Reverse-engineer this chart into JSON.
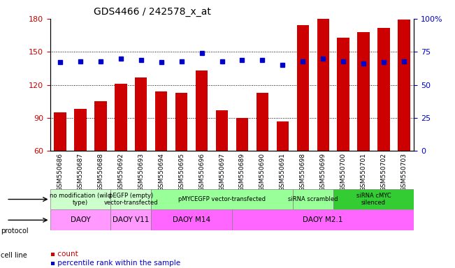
{
  "title": "GDS4466 / 242578_x_at",
  "samples": [
    "GSM550686",
    "GSM550687",
    "GSM550688",
    "GSM550692",
    "GSM550693",
    "GSM550694",
    "GSM550695",
    "GSM550696",
    "GSM550697",
    "GSM550689",
    "GSM550690",
    "GSM550691",
    "GSM550698",
    "GSM550699",
    "GSM550700",
    "GSM550701",
    "GSM550702",
    "GSM550703"
  ],
  "bar_values": [
    95,
    98,
    105,
    121,
    127,
    114,
    113,
    133,
    97,
    90,
    113,
    87,
    174,
    180,
    163,
    168,
    172,
    179
  ],
  "dot_values": [
    67,
    68,
    68,
    70,
    69,
    67,
    68,
    74,
    68,
    69,
    69,
    65,
    68,
    70,
    68,
    66,
    67,
    68
  ],
  "bar_color": "#cc0000",
  "dot_color": "#0000cc",
  "ylim_left": [
    60,
    180
  ],
  "ylim_right": [
    0,
    100
  ],
  "yticks_left": [
    60,
    90,
    120,
    150,
    180
  ],
  "yticks_right": [
    0,
    25,
    50,
    75,
    100
  ],
  "ytick_labels_right": [
    "0",
    "25",
    "50",
    "75",
    "100%"
  ],
  "grid_values": [
    90,
    120,
    150
  ],
  "protocol_groups": [
    {
      "label": "no modification (wild\ntype)",
      "start": 0,
      "end": 3,
      "color": "#ccffcc"
    },
    {
      "label": "pEGFP (empty)\nvector-transfected",
      "start": 3,
      "end": 5,
      "color": "#ccffcc"
    },
    {
      "label": "pMYCEGFP vector-transfected",
      "start": 5,
      "end": 12,
      "color": "#99ff99"
    },
    {
      "label": "siRNA scrambled",
      "start": 12,
      "end": 14,
      "color": "#99ff99"
    },
    {
      "label": "siRNA cMYC\nsilenced",
      "start": 14,
      "end": 18,
      "color": "#33cc33"
    }
  ],
  "cellline_groups": [
    {
      "label": "DAOY",
      "start": 0,
      "end": 3,
      "color": "#ff99ff"
    },
    {
      "label": "DAOY V11",
      "start": 3,
      "end": 5,
      "color": "#ff99ff"
    },
    {
      "label": "DAOY M14",
      "start": 5,
      "end": 9,
      "color": "#ff66ff"
    },
    {
      "label": "DAOY M2.1",
      "start": 9,
      "end": 18,
      "color": "#ff66ff"
    }
  ],
  "xlabel_color": "#cc0000",
  "ylabel_left_color": "#cc0000",
  "ylabel_right_color": "#0000cc",
  "bg_color": "#ffffff",
  "plot_bg_color": "#ffffff",
  "tick_label_area_color": "#e0e0e0",
  "legend_count_color": "#cc0000",
  "legend_dot_color": "#0000cc"
}
